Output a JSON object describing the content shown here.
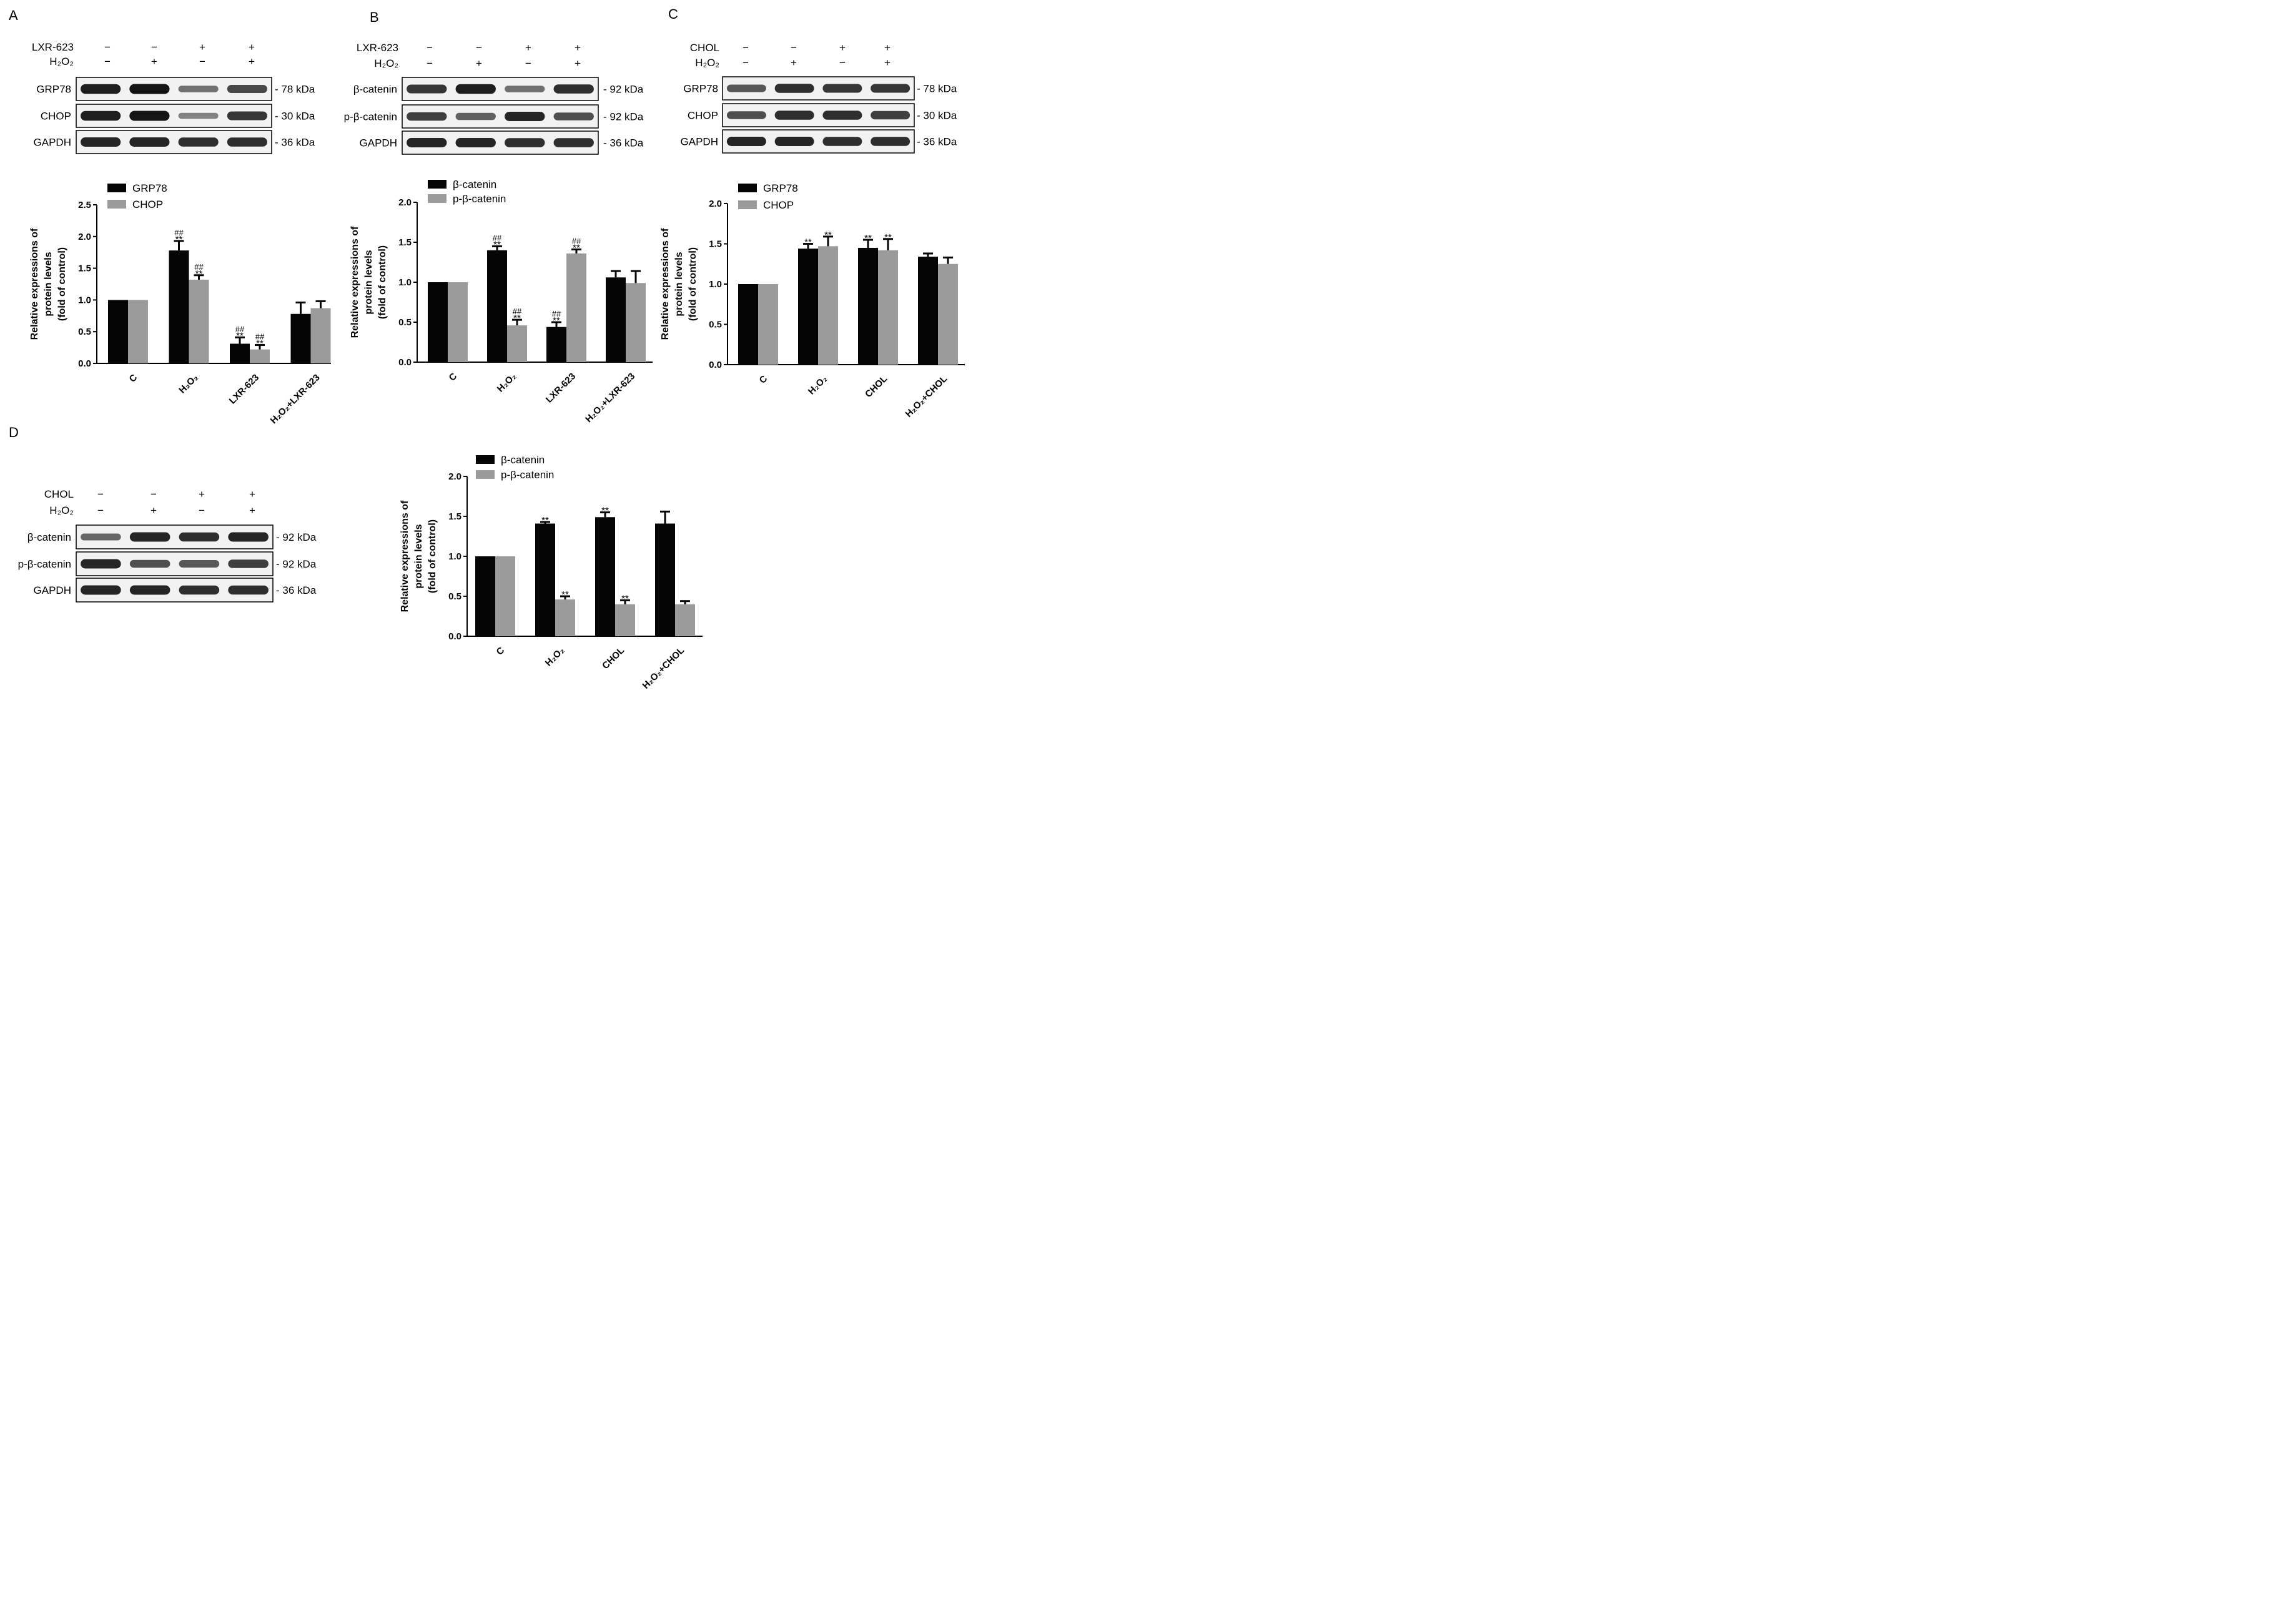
{
  "colors": {
    "dark": "#050505",
    "light": "#9b9b9b",
    "band": "#151515"
  },
  "panels": [
    {
      "letter": "A",
      "treatment_rows": [
        {
          "label": "LXR-623",
          "signs": [
            "−",
            "−",
            "+",
            "+"
          ]
        },
        {
          "label": "H₂O₂",
          "signs": [
            "−",
            "+",
            "−",
            "+"
          ]
        }
      ],
      "blots": [
        {
          "protein": "GRP78",
          "size": "- 78 kDa",
          "intensity": [
            0.95,
            1.0,
            0.45,
            0.7
          ]
        },
        {
          "protein": "CHOP",
          "size": "- 30 kDa",
          "intensity": [
            0.95,
            1.0,
            0.35,
            0.8
          ]
        },
        {
          "protein": "GAPDH",
          "size": "- 36 kDa",
          "intensity": [
            0.9,
            0.9,
            0.85,
            0.85
          ]
        }
      ]
    },
    {
      "letter": "B",
      "treatment_rows": [
        {
          "label": "LXR-623",
          "signs": [
            "−",
            "−",
            "+",
            "+"
          ]
        },
        {
          "label": "H₂O₂",
          "signs": [
            "−",
            "+",
            "−",
            "+"
          ]
        }
      ],
      "blots": [
        {
          "protein": "β-catenin",
          "size": "- 92 kDa",
          "intensity": [
            0.8,
            0.95,
            0.45,
            0.85
          ]
        },
        {
          "protein": "p-β-catenin",
          "size": "- 92 kDa",
          "intensity": [
            0.75,
            0.55,
            0.9,
            0.65
          ]
        },
        {
          "protein": "GAPDH",
          "size": "- 36 kDa",
          "intensity": [
            0.9,
            0.9,
            0.85,
            0.85
          ]
        }
      ]
    },
    {
      "letter": "C",
      "treatment_rows": [
        {
          "label": "CHOL",
          "signs": [
            "−",
            "−",
            "+",
            "+"
          ]
        },
        {
          "label": "H₂O₂",
          "signs": [
            "−",
            "+",
            "−",
            "+"
          ]
        }
      ],
      "blots": [
        {
          "protein": "GRP78",
          "size": "- 78 kDa",
          "intensity": [
            0.6,
            0.85,
            0.8,
            0.8
          ]
        },
        {
          "protein": "CHOP",
          "size": "- 30 kDa",
          "intensity": [
            0.65,
            0.85,
            0.85,
            0.75
          ]
        },
        {
          "protein": "GAPDH",
          "size": "- 36 kDa",
          "intensity": [
            0.9,
            0.9,
            0.85,
            0.85
          ]
        }
      ]
    },
    {
      "letter": "D",
      "treatment_rows": [
        {
          "label": "CHOL",
          "signs": [
            "−",
            "−",
            "+",
            "+"
          ]
        },
        {
          "label": "H₂O₂",
          "signs": [
            "−",
            "+",
            "−",
            "+"
          ]
        }
      ],
      "blots": [
        {
          "protein": "β-catenin",
          "size": "- 92 kDa",
          "intensity": [
            0.5,
            0.9,
            0.85,
            0.9
          ]
        },
        {
          "protein": "p-β-catenin",
          "size": "- 92 kDa",
          "intensity": [
            0.9,
            0.65,
            0.6,
            0.75
          ]
        },
        {
          "protein": "GAPDH",
          "size": "- 36 kDa",
          "intensity": [
            0.9,
            0.9,
            0.85,
            0.85
          ]
        }
      ]
    }
  ],
  "chart_data": [
    {
      "panel": "A",
      "type": "bar",
      "categories": [
        "C",
        "H₂O₂",
        "LXR-623",
        "H₂O₂+LXR-623"
      ],
      "ylabel": [
        "Relative expressions of",
        "protein levels",
        "(fold of control)"
      ],
      "ylim": [
        0,
        2.5
      ],
      "yticks": [
        "0.0",
        "0.5",
        "1.0",
        "1.5",
        "2.0",
        "2.5"
      ],
      "yticks_values": [
        0,
        0.5,
        1.0,
        1.5,
        2.0,
        2.5
      ],
      "legend": "top-left",
      "series": [
        {
          "name": "GRP78",
          "color": "dark",
          "values": [
            1.0,
            1.78,
            0.31,
            0.78
          ],
          "errors": [
            0,
            0.15,
            0.1,
            0.18
          ],
          "annotations": [
            [
              "",
              ""
            ],
            [
              "##",
              "**"
            ],
            [
              "##",
              "**"
            ],
            [
              "",
              ""
            ]
          ]
        },
        {
          "name": "CHOP",
          "color": "light",
          "values": [
            1.0,
            1.32,
            0.22,
            0.87
          ],
          "errors": [
            0,
            0.07,
            0.07,
            0.11
          ],
          "annotations": [
            [
              "",
              ""
            ],
            [
              "##",
              "**"
            ],
            [
              "##",
              "**"
            ],
            [
              "",
              ""
            ]
          ]
        }
      ]
    },
    {
      "panel": "B",
      "type": "bar",
      "categories": [
        "C",
        "H₂O₂",
        "LXR-623",
        "H₂O₂+LXR-623"
      ],
      "ylabel": [
        "Relative expressions of",
        "protein levels",
        "(fold of control)"
      ],
      "ylim": [
        0,
        2.0
      ],
      "yticks": [
        "0.0",
        "0.5",
        "1.0",
        "1.5",
        "2.0"
      ],
      "yticks_values": [
        0,
        0.5,
        1.0,
        1.5,
        2.0
      ],
      "legend": "top-left",
      "series": [
        {
          "name": "β-catenin",
          "color": "dark",
          "values": [
            1.0,
            1.4,
            0.44,
            1.06
          ],
          "errors": [
            0,
            0.05,
            0.06,
            0.08
          ],
          "annotations": [
            [
              "",
              ""
            ],
            [
              "##",
              "**"
            ],
            [
              "##",
              "**"
            ],
            [
              "",
              ""
            ]
          ]
        },
        {
          "name": "p-β-catenin",
          "color": "light",
          "values": [
            1.0,
            0.46,
            1.36,
            0.99
          ],
          "errors": [
            0,
            0.07,
            0.05,
            0.15
          ],
          "annotations": [
            [
              "",
              ""
            ],
            [
              "##",
              "**"
            ],
            [
              "##",
              "**"
            ],
            [
              "",
              ""
            ]
          ]
        }
      ]
    },
    {
      "panel": "C",
      "type": "bar",
      "categories": [
        "C",
        "H₂O₂",
        "CHOL",
        "H₂O₂+CHOL"
      ],
      "ylabel": [
        "Relative expressions of",
        "protein levels",
        "(fold of control)"
      ],
      "ylim": [
        0,
        2.0
      ],
      "yticks": [
        "0.0",
        "0.5",
        "1.0",
        "1.5",
        "2.0"
      ],
      "yticks_values": [
        0,
        0.5,
        1.0,
        1.5,
        2.0
      ],
      "legend": "top-left",
      "series": [
        {
          "name": "GRP78",
          "color": "dark",
          "values": [
            1.0,
            1.44,
            1.45,
            1.34
          ],
          "errors": [
            0,
            0.06,
            0.1,
            0.04
          ],
          "annotations": [
            [
              "",
              ""
            ],
            [
              "",
              "**"
            ],
            [
              "",
              "**"
            ],
            [
              "",
              ""
            ]
          ]
        },
        {
          "name": "CHOP",
          "color": "light",
          "values": [
            1.0,
            1.47,
            1.42,
            1.25
          ],
          "errors": [
            0,
            0.12,
            0.14,
            0.08
          ],
          "annotations": [
            [
              "",
              ""
            ],
            [
              "",
              "**"
            ],
            [
              "",
              "**"
            ],
            [
              "",
              ""
            ]
          ]
        }
      ]
    },
    {
      "panel": "D",
      "type": "bar",
      "categories": [
        "C",
        "H₂O₂",
        "CHOL",
        "H₂O₂+CHOL"
      ],
      "ylabel": [
        "Relative expressions of",
        "protein levels",
        "(fold of control)"
      ],
      "ylim": [
        0,
        2.0
      ],
      "yticks": [
        "0.0",
        "0.5",
        "1.0",
        "1.5",
        "2.0"
      ],
      "yticks_values": [
        0,
        0.5,
        1.0,
        1.5,
        2.0
      ],
      "legend": "top-left",
      "series": [
        {
          "name": "β-catenin",
          "color": "dark",
          "values": [
            1.0,
            1.41,
            1.49,
            1.41
          ],
          "errors": [
            0,
            0.02,
            0.06,
            0.15
          ],
          "annotations": [
            [
              "",
              ""
            ],
            [
              "",
              "**"
            ],
            [
              "",
              "**"
            ],
            [
              "",
              ""
            ]
          ]
        },
        {
          "name": "p-β-catenin",
          "color": "light",
          "values": [
            1.0,
            0.46,
            0.4,
            0.4
          ],
          "errors": [
            0,
            0.04,
            0.05,
            0.04
          ],
          "annotations": [
            [
              "",
              ""
            ],
            [
              "",
              "**"
            ],
            [
              "",
              "**"
            ],
            [
              "",
              ""
            ]
          ]
        }
      ]
    }
  ]
}
